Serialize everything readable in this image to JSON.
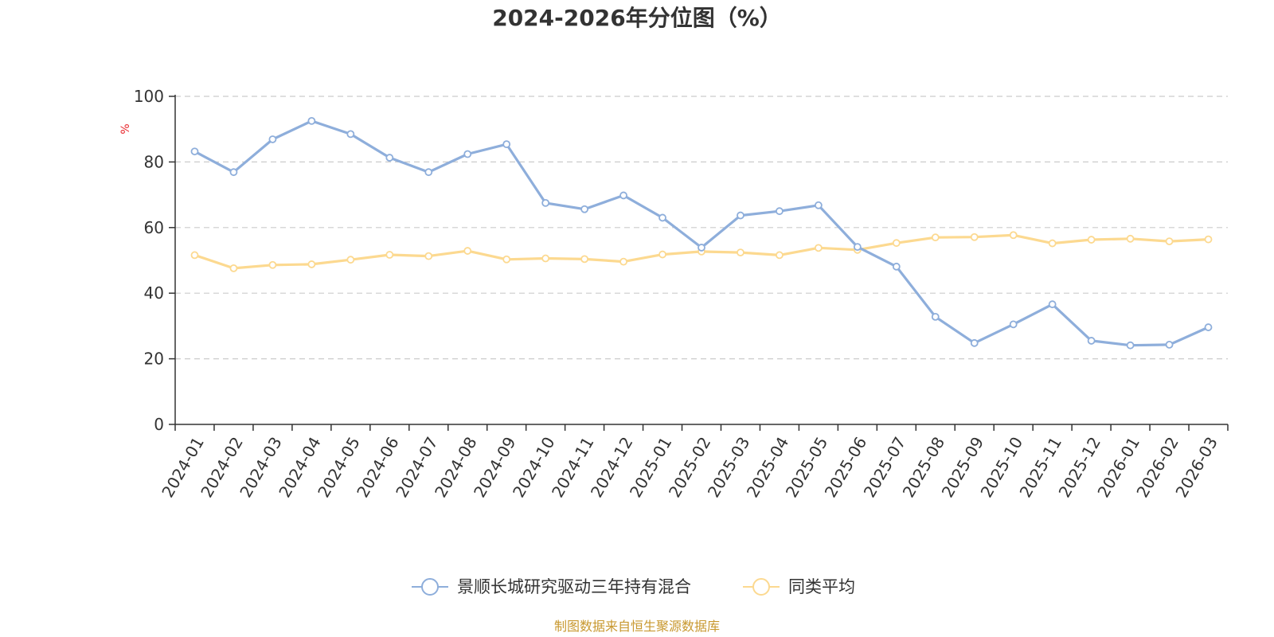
{
  "colors": {
    "series1": "#8eaedb",
    "series2": "#fcd990",
    "axis": "#333333",
    "grid": "#cccccc",
    "unit": "#e8262b",
    "source": "#c8982f"
  },
  "source_note": "制图数据来自恒生聚源数据库",
  "chart_data": {
    "type": "line",
    "title": "2024-2026年分位图（%）",
    "ylabel": "%",
    "xlabel": "",
    "ylim": [
      0,
      100
    ],
    "yticks": [
      0,
      20,
      40,
      60,
      80,
      100
    ],
    "grid": true,
    "legend_position": "bottom-center",
    "categories": [
      "2024-01",
      "2024-02",
      "2024-03",
      "2024-04",
      "2024-05",
      "2024-06",
      "2024-07",
      "2024-08",
      "2024-09",
      "2024-10",
      "2024-11",
      "2024-12",
      "2025-01",
      "2025-02",
      "2025-03",
      "2025-04",
      "2025-05",
      "2025-06",
      "2025-07",
      "2025-08",
      "2025-09",
      "2025-10",
      "2025-11",
      "2025-12",
      "2026-01",
      "2026-02",
      "2026-03"
    ],
    "series": [
      {
        "name": "景顺长城研究驱动三年持有混合",
        "values": [
          83.2,
          76.9,
          86.9,
          92.5,
          88.5,
          81.3,
          76.9,
          82.4,
          85.4,
          67.5,
          65.6,
          69.8,
          63.0,
          53.9,
          63.7,
          65.0,
          66.8,
          54.1,
          48.1,
          32.8,
          24.8,
          30.5,
          36.6,
          25.5,
          24.1,
          24.3,
          29.6
        ]
      },
      {
        "name": "同类平均",
        "values": [
          51.6,
          47.6,
          48.6,
          48.8,
          50.2,
          51.7,
          51.3,
          52.9,
          50.3,
          50.6,
          50.4,
          49.6,
          51.8,
          52.7,
          52.4,
          51.6,
          53.8,
          53.2,
          55.3,
          57.0,
          57.1,
          57.7,
          55.2,
          56.3,
          56.6,
          55.8,
          56.4
        ]
      }
    ]
  }
}
